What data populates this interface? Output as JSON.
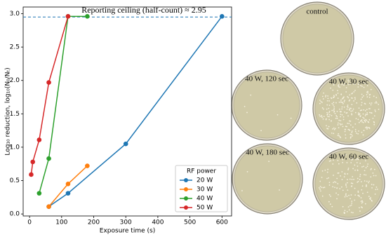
{
  "chart_data": {
    "type": "line",
    "xlabel": "Exposure time (s)",
    "ylabel": "Log₁₀ reduction, log₁₀(N₀/Nₜ)",
    "xlim": [
      -20,
      630
    ],
    "xticks": [
      0,
      100,
      200,
      300,
      400,
      500,
      600
    ],
    "ylim": [
      -0.03,
      3.1
    ],
    "yticks": [
      {
        "value": 0,
        "label": "0.0"
      },
      0.5,
      {
        "value": 1,
        "label": "1.0"
      },
      1.5,
      {
        "value": 2,
        "label": "2.0"
      },
      2.5,
      {
        "value": 3,
        "label": "3.0"
      }
    ],
    "legend_title": "RF power",
    "legend_loc": "lower right",
    "reference_line": {
      "value": 2.95,
      "label": "Reporting ceiling (half-count) ≈ 2.95",
      "color": "#1f77b4"
    },
    "series": [
      {
        "name": "20 W",
        "color": "#1f77b4",
        "x": [
          60,
          120,
          300,
          600
        ],
        "values": [
          0.11,
          0.31,
          1.05,
          2.96
        ]
      },
      {
        "name": "30 W",
        "color": "#ff7f0e",
        "x": [
          60,
          120,
          180
        ],
        "values": [
          0.11,
          0.45,
          0.72
        ]
      },
      {
        "name": "40 W",
        "color": "#2ca02c",
        "x": [
          30,
          60,
          120,
          180
        ],
        "values": [
          0.31,
          0.83,
          2.96,
          2.96
        ]
      },
      {
        "name": "50 W",
        "color": "#d62728",
        "x": [
          5,
          10,
          30,
          60,
          120
        ],
        "values": [
          0.59,
          0.78,
          1.11,
          1.97,
          2.96
        ]
      }
    ]
  },
  "image": {
    "labels": [
      "control",
      "40 W, 120 sec",
      "40 W, 30 sec",
      "40 W, 180 sec",
      "40 W, 60 sec"
    ]
  }
}
